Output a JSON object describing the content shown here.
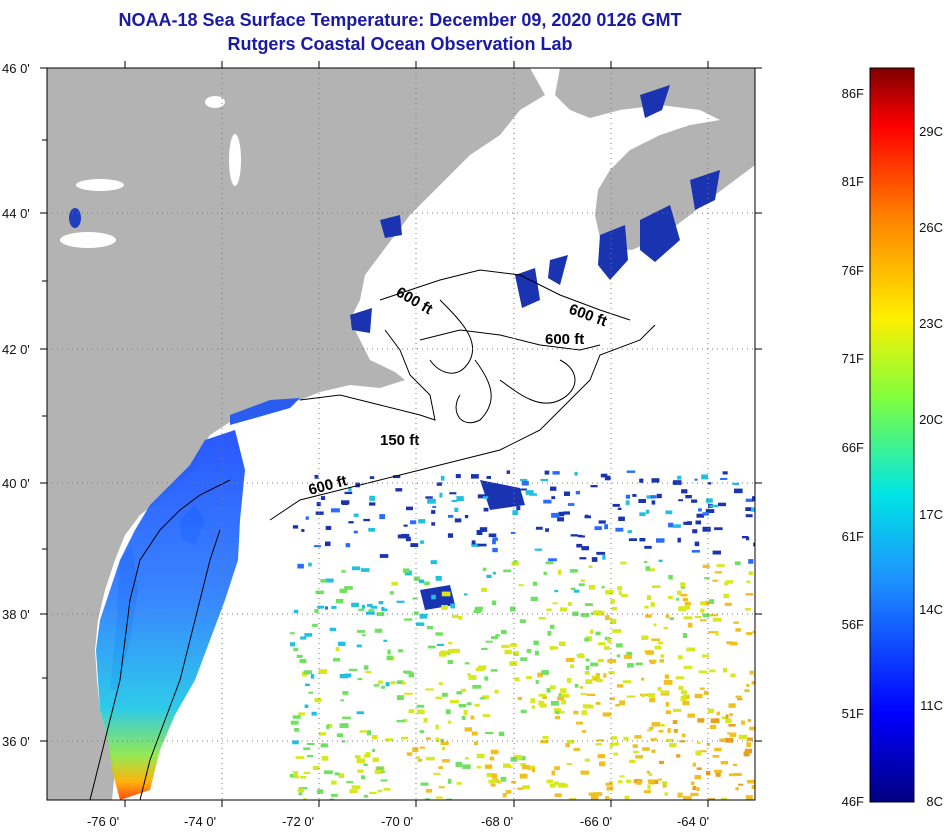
{
  "title": "NOAA-18 Sea Surface Temperature:  December 09, 2020 0126 GMT",
  "subtitle": "Rutgers Coastal Ocean Observation Lab",
  "colors": {
    "land": "#b3b3b3",
    "ocean": "#ffffff",
    "title": "#1a1aa6",
    "contour": "#000000"
  },
  "latitude_labels": [
    "46 0'",
    "44 0'",
    "42 0'",
    "40 0'",
    "38 0'",
    "36 0'"
  ],
  "longitude_labels": [
    "-76 0'",
    "-74 0'",
    "-72 0'",
    "-70 0'",
    "-68 0'",
    "-66 0'",
    "-64 0'"
  ],
  "contour_labels": [
    "600 ft",
    "600 ft",
    "600 ft",
    "150 ft",
    "600 ft"
  ],
  "colorbar": {
    "fahrenheit": [
      "86F",
      "81F",
      "76F",
      "71F",
      "66F",
      "61F",
      "56F",
      "51F",
      "46F"
    ],
    "celsius": [
      "29C",
      "26C",
      "23C",
      "20C",
      "17C",
      "14C",
      "11C",
      "8C"
    ]
  }
}
